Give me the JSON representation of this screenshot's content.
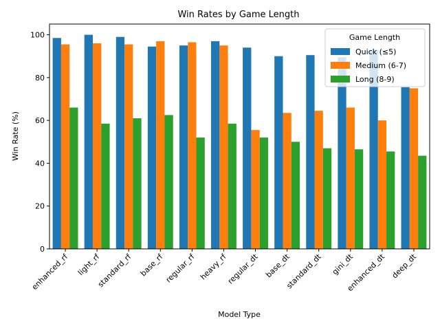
{
  "chart_data": {
    "type": "bar",
    "title": "Win Rates by Game Length",
    "xlabel": "Model Type",
    "ylabel": "Win Rate (%)",
    "ylim": [
      0,
      105
    ],
    "yticks": [
      0,
      20,
      40,
      60,
      80,
      100
    ],
    "categories": [
      "enhanced_rf",
      "light_rf",
      "standard_rf",
      "base_rf",
      "regular_rf",
      "heavy_rf",
      "regular_dt",
      "base_dt",
      "standard_dt",
      "gini_dt",
      "enhanced_dt",
      "deep_dt"
    ],
    "series": [
      {
        "name": "Quick (≤5)",
        "color": "#1f77b4",
        "values": [
          98.5,
          100,
          99,
          94.5,
          95,
          97,
          94,
          90,
          90.5,
          89.5,
          93,
          75.5
        ]
      },
      {
        "name": "Medium (6-7)",
        "color": "#ff7f0e",
        "values": [
          95.5,
          96,
          95.5,
          97,
          96.5,
          95,
          55.5,
          63.5,
          64.5,
          66,
          60,
          75
        ]
      },
      {
        "name": "Long (8-9)",
        "color": "#2ca02c",
        "values": [
          66,
          58.5,
          61,
          62.5,
          52,
          58.5,
          52,
          50,
          47,
          46.5,
          45.5,
          43.5
        ]
      }
    ],
    "legend": {
      "title": "Game Length",
      "position": "upper right"
    },
    "grid": false
  }
}
